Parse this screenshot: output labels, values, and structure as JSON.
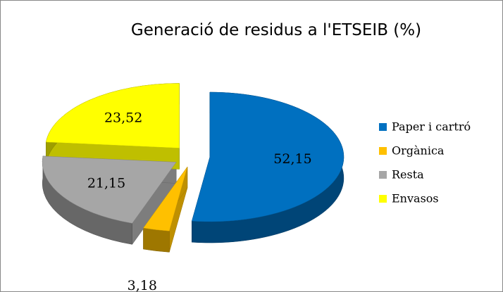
{
  "chart_data": {
    "type": "pie",
    "title": "Generació de residus a l'ETSEIB (%)",
    "categories": [
      "Paper i cartró",
      "Orgànica",
      "Resta",
      "Envasos"
    ],
    "values": [
      52.15,
      3.18,
      21.15,
      23.52
    ],
    "value_labels": [
      "52,15",
      "3,18",
      "21,15",
      "23,52"
    ],
    "colors": [
      "#0070c0",
      "#ffc000",
      "#a6a6a6",
      "#ffff00"
    ],
    "legend": "right"
  }
}
